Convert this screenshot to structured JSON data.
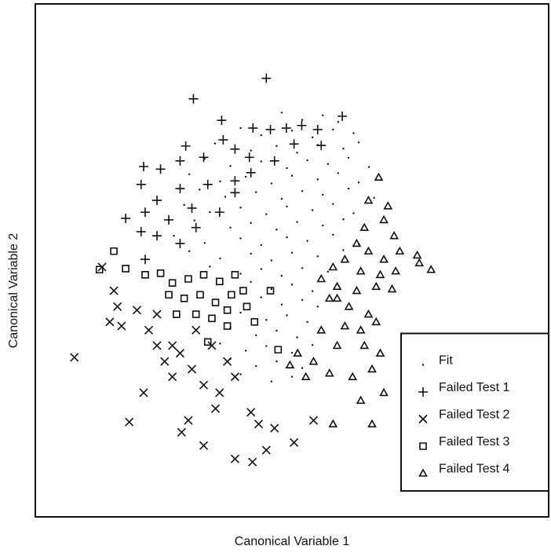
{
  "chart_data": {
    "type": "scatter",
    "x_label": "Canonical Variable 1",
    "y_label": "Canonical Variable 2",
    "xlim": [
      0,
      100
    ],
    "ylim": [
      0,
      100
    ],
    "legend": "lower right",
    "grid": false,
    "series": [
      {
        "name": "Fit",
        "marker": "dot",
        "color": "#111111",
        "x": [
          48,
          52,
          56,
          59,
          40,
          44,
          50,
          54,
          58,
          62,
          35,
          42,
          47,
          51,
          55,
          60,
          63,
          33,
          38,
          44,
          49,
          53,
          57,
          61,
          65,
          30,
          36,
          41,
          46,
          50,
          55,
          59,
          63,
          32,
          37,
          43,
          48,
          52,
          56,
          61,
          66,
          29,
          34,
          40,
          45,
          49,
          54,
          58,
          62,
          31,
          38,
          42,
          47,
          51,
          56,
          60,
          27,
          33,
          40,
          44,
          49,
          53,
          58,
          63,
          30,
          36,
          42,
          46,
          50,
          55,
          60,
          34,
          40,
          44,
          48,
          52,
          57,
          42,
          46,
          50,
          54,
          44,
          48,
          52,
          55,
          40,
          45,
          49,
          53,
          38,
          43,
          47,
          51,
          36,
          41,
          45,
          50,
          54,
          38,
          43,
          47,
          52,
          40,
          46,
          50
        ],
        "y": [
          78.8,
          77.4,
          78.3,
          77,
          75.8,
          74.4,
          75.3,
          74,
          75.5,
          74.8,
          72.8,
          71.4,
          72.3,
          71,
          72.5,
          71.8,
          73,
          69.8,
          68.4,
          69.3,
          68,
          69.5,
          68.8,
          70,
          68.2,
          66.8,
          65.4,
          66.3,
          65,
          66.5,
          65.8,
          67,
          65.2,
          63.8,
          62.4,
          63.3,
          62,
          63.5,
          62.8,
          64,
          62.2,
          60.8,
          59.4,
          60.3,
          59,
          60.5,
          59.8,
          61,
          59.2,
          57.8,
          56.4,
          57.3,
          56,
          57.5,
          56.8,
          58,
          54.8,
          53.4,
          54.3,
          53,
          54.5,
          53.8,
          55,
          53.2,
          51.8,
          50.4,
          51.3,
          50,
          51.5,
          50.8,
          52,
          48.8,
          47.4,
          48.3,
          47,
          48.5,
          47.8,
          45.8,
          44.4,
          45.3,
          44,
          42.8,
          41.4,
          42.3,
          41,
          39.8,
          38.4,
          39.3,
          38,
          36.8,
          35.4,
          36.3,
          35,
          33.8,
          32.4,
          33.3,
          32,
          33.5,
          30.8,
          29.4,
          30.3,
          29,
          27.8,
          26.4,
          27.3
        ]
      },
      {
        "name": "Failed Test 1",
        "marker": "plus",
        "color": "#111111",
        "x": [
          45.0,
          30.8,
          36.3,
          59.8,
          42.4,
          45.8,
          48.9,
          51.9,
          55.0,
          50.4,
          55.7,
          29.3,
          36.6,
          38.9,
          21.1,
          24.4,
          28.2,
          32.8,
          41.7,
          46.6,
          20.6,
          23.7,
          28.2,
          33.6,
          38.9,
          42.0,
          17.6,
          21.4,
          26.0,
          30.5,
          35.9,
          20.6,
          23.7,
          31.3,
          21.4,
          28.2,
          38.9
        ],
        "y": [
          85.5,
          81.5,
          77.3,
          78.1,
          75.8,
          75.5,
          75.8,
          76.3,
          75.5,
          72.7,
          72.4,
          72.3,
          73.5,
          71.7,
          68.3,
          67.8,
          69.4,
          70.1,
          70.1,
          69.4,
          64.8,
          61.7,
          64.0,
          64.8,
          63.2,
          67.1,
          58.2,
          59.4,
          57.9,
          60.2,
          59.4,
          55.6,
          54.8,
          56.4,
          50.2,
          53.3,
          65.5
        ]
      },
      {
        "name": "Failed Test 2",
        "marker": "cross",
        "color": "#111111",
        "x": [
          7.6,
          18.3,
          21.1,
          13.0,
          15.3,
          16.0,
          14.5,
          16.8,
          19.8,
          22.1,
          23.7,
          25.2,
          28.2,
          26.7,
          30.5,
          32.8,
          35.9,
          38.9,
          37.4,
          34.4,
          31.3,
          38.9,
          42.3,
          45.0,
          28.5,
          32.8,
          29.8,
          43.5,
          46.6,
          42.0,
          50.4,
          54.2,
          26.7,
          23.7,
          35.1
        ],
        "y": [
          31.1,
          18.5,
          24.2,
          48.7,
          44.1,
          41.0,
          38.0,
          37.2,
          40.3,
          36.4,
          33.4,
          30.3,
          31.9,
          27.3,
          28.8,
          25.7,
          24.2,
          27.3,
          30.3,
          33.4,
          36.4,
          11.3,
          10.7,
          13.0,
          16.5,
          13.9,
          18.8,
          18.1,
          17.3,
          20.4,
          14.5,
          18.8,
          33.4,
          39.5,
          21.1
        ]
      },
      {
        "name": "Failed Test 3",
        "marker": "square",
        "color": "#111111",
        "x": [
          12.5,
          17.6,
          21.4,
          24.4,
          26.7,
          29.8,
          32.8,
          35.9,
          38.9,
          26.0,
          29.0,
          32.1,
          35.1,
          38.2,
          40.5,
          27.5,
          31.3,
          34.4,
          37.4,
          41.2,
          33.6,
          37.4,
          47.3,
          45.8,
          15.3,
          42.7
        ],
        "y": [
          48.2,
          48.4,
          47.2,
          47.5,
          45.6,
          46.4,
          47.2,
          45.9,
          47.2,
          43.3,
          42.6,
          43.3,
          41.8,
          43.3,
          44.1,
          39.5,
          39.5,
          38.7,
          40.3,
          41.0,
          34.1,
          37.2,
          32.6,
          44.1,
          51.8,
          38.0
        ]
      },
      {
        "name": "Failed Test 4",
        "marker": "triangle",
        "color": "#111111",
        "x": [
          66.9,
          64.9,
          68.7,
          67.9,
          69.9,
          64.1,
          62.6,
          64.9,
          67.9,
          71.0,
          74.4,
          77.1,
          74.8,
          70.2,
          67.2,
          63.4,
          60.3,
          58.0,
          55.7,
          58.8,
          62.6,
          66.4,
          69.5,
          57.3,
          61.1,
          64.9,
          60.3,
          63.4,
          66.4,
          55.7,
          58.8,
          64.1,
          67.2,
          65.6,
          67.9,
          63.4,
          58.0,
          65.6,
          57.3,
          54.2,
          51.1,
          49.6,
          52.7,
          61.8,
          58.8
        ],
        "y": [
          66.2,
          61.7,
          60.6,
          57.9,
          54.8,
          56.4,
          53.3,
          51.8,
          50.2,
          51.8,
          51.0,
          48.2,
          49.5,
          47.9,
          47.2,
          47.9,
          50.2,
          48.7,
          46.4,
          44.9,
          44.1,
          44.9,
          44.4,
          42.6,
          41.0,
          39.5,
          37.2,
          36.4,
          38.0,
          36.4,
          33.4,
          33.4,
          31.9,
          28.8,
          24.2,
          22.7,
          18.1,
          18.1,
          28.0,
          30.3,
          31.9,
          29.6,
          27.3,
          27.3,
          42.6
        ]
      }
    ]
  }
}
